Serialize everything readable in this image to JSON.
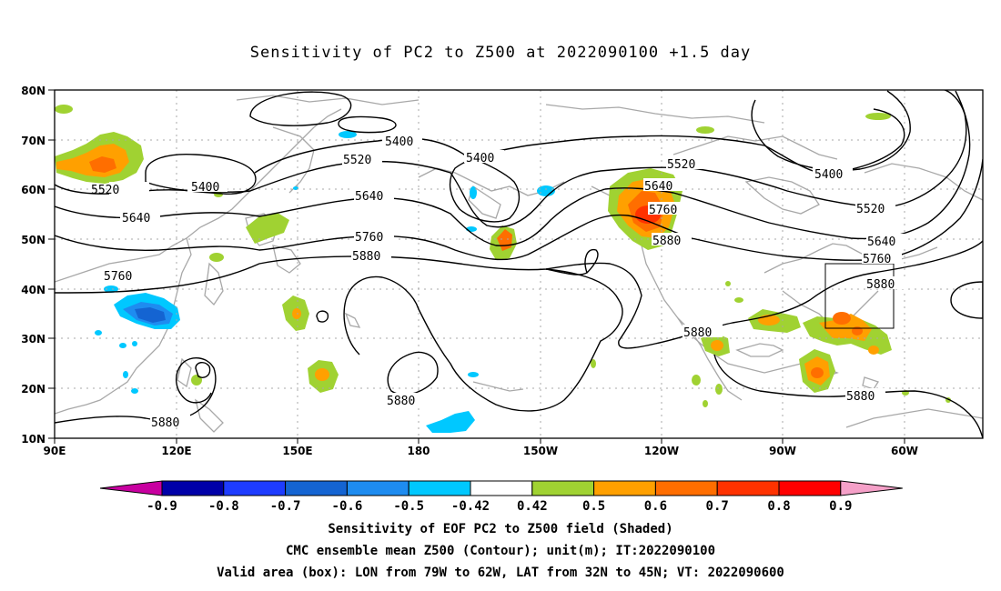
{
  "title": "Sensitivity of PC2 to Z500 at 2022090100 +1.5 day",
  "map": {
    "lat_labels": [
      "80N",
      "70N",
      "60N",
      "50N",
      "40N",
      "30N",
      "20N",
      "10N"
    ],
    "lon_labels": [
      "90E",
      "120E",
      "150E",
      "180",
      "150W",
      "120W",
      "90W",
      "60W"
    ],
    "contour_labels": {
      "c5400_w": "5400",
      "c5400_nw": "5400",
      "c5400_c": "5400",
      "c5400_e": "5400",
      "c5520_w": "5520",
      "c5520_c": "5520",
      "c5520_rockies": "5520",
      "c5520_e": "5520",
      "c5640_w": "5640",
      "c5640_c": "5640",
      "c5640_rockies": "5640",
      "c5640_e": "5640",
      "c5760_w": "5760",
      "c5760_c": "5760",
      "c5760_rockies": "5760",
      "c5760_e": "5760",
      "c5880_c": "5880",
      "c5880_rockies": "5880",
      "c5880_e": "5880",
      "c5880_gulf": "5880",
      "c5880_pac": "5880",
      "c5880_sw": "5880",
      "c5880_carib": "5880"
    },
    "valid_box": {
      "lon_min": "79W",
      "lon_max": "62W",
      "lat_min": "32N",
      "lat_max": "45N"
    }
  },
  "colorbar": {
    "labels": [
      "-0.9",
      "-0.8",
      "-0.7",
      "-0.6",
      "-0.5",
      "-0.42",
      "0.42",
      "0.5",
      "0.6",
      "0.7",
      "0.8",
      "0.9"
    ],
    "colors": [
      "#c800a0",
      "#0000a8",
      "#1e3cff",
      "#1464d2",
      "#1e8cf0",
      "#00c8ff",
      "#ffffff",
      "#a0d232",
      "#ffa000",
      "#ff6e00",
      "#ff3200",
      "#ff0000",
      "#f5a0c8"
    ]
  },
  "footer": {
    "line1": "Sensitivity of EOF PC2 to Z500 field (Shaded)",
    "line2": "CMC ensemble mean Z500 (Contour); unit(m); IT:2022090100",
    "line3": "Valid area (box): LON from 79W to 62W, LAT from 32N to 45N; VT: 2022090600"
  }
}
